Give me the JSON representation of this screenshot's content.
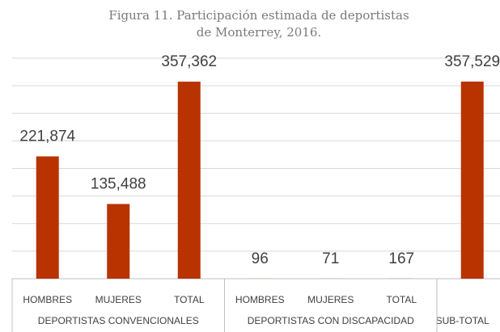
{
  "chart_data": {
    "type": "bar",
    "title_lines": [
      "Figura 11. Participación estimada de deportistas",
      "de Monterrey, 2016."
    ],
    "color": "#b83300",
    "ylim": [
      0,
      400000
    ],
    "yticks": [
      0,
      50000,
      100000,
      150000,
      200000,
      250000,
      300000,
      350000,
      400000
    ],
    "grid": true,
    "groups": [
      {
        "name": "DEPORTISTAS CONVENCIONALES",
        "categories": [
          "HOMBRES",
          "MUJERES",
          "TOTAL"
        ],
        "values": [
          221874,
          135488,
          357362
        ],
        "value_labels": [
          "221,874",
          "135,488",
          "357,362"
        ]
      },
      {
        "name": "DEPORTISTAS CON DISCAPACIDAD",
        "categories": [
          "HOMBRES",
          "MUJERES",
          "TOTAL"
        ],
        "values": [
          96,
          71,
          167
        ],
        "value_labels": [
          "96",
          "71",
          "167"
        ]
      },
      {
        "name": "SUB-TOTAL",
        "categories": [
          null
        ],
        "values": [
          357529
        ],
        "value_labels": [
          "357,529"
        ]
      }
    ]
  }
}
